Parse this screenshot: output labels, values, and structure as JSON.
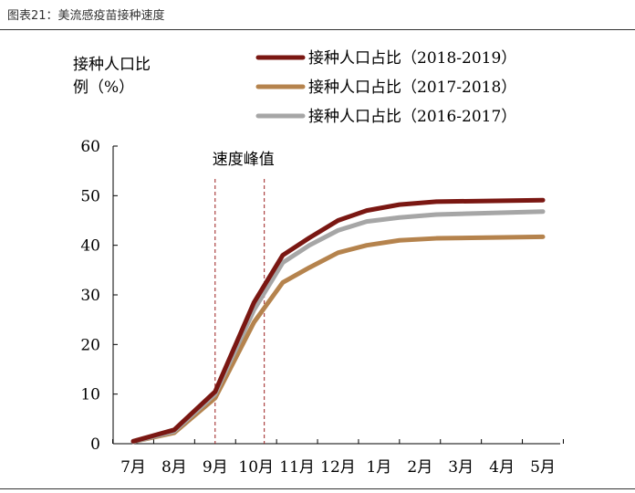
{
  "caption": "图表21：美流感疫苗接种速度",
  "chart_data": {
    "type": "line",
    "title": "",
    "ylabel": "接种人口比例（%）",
    "xlabel": "",
    "categories": [
      "7月",
      "8月",
      "9月",
      "10月",
      "11月",
      "12月",
      "1月",
      "2月",
      "3月",
      "4月",
      "5月"
    ],
    "ylim": [
      0,
      60
    ],
    "yticks": [
      0,
      10,
      20,
      30,
      40,
      50,
      60
    ],
    "x_positions": [
      0,
      1,
      2,
      2.95,
      3.65,
      4.3,
      5.0,
      5.7,
      6.5,
      7.4,
      10.0
    ],
    "series": [
      {
        "name": "接种人口占比（2018-2019）",
        "color": "#7a1712",
        "values": [
          0.5,
          2.8,
          10.5,
          28.5,
          38.0,
          41.5,
          45.0,
          47.0,
          48.2,
          48.8,
          49.1
        ]
      },
      {
        "name": "接种人口占比（2017-2018）",
        "color": "#b5834d",
        "values": [
          0.4,
          2.2,
          9.2,
          24.5,
          32.5,
          35.5,
          38.5,
          40.0,
          41.0,
          41.4,
          41.7
        ]
      },
      {
        "name": "接种人口占比（2016-2017）",
        "color": "#a6a6a6",
        "values": [
          0.4,
          2.5,
          10.0,
          27.0,
          36.5,
          40.0,
          43.0,
          44.8,
          45.6,
          46.2,
          46.8
        ]
      }
    ],
    "annotation": {
      "text": "速度峰值",
      "x_range": [
        2.0,
        3.2
      ]
    },
    "grid": false,
    "legend_position": "top-right"
  }
}
